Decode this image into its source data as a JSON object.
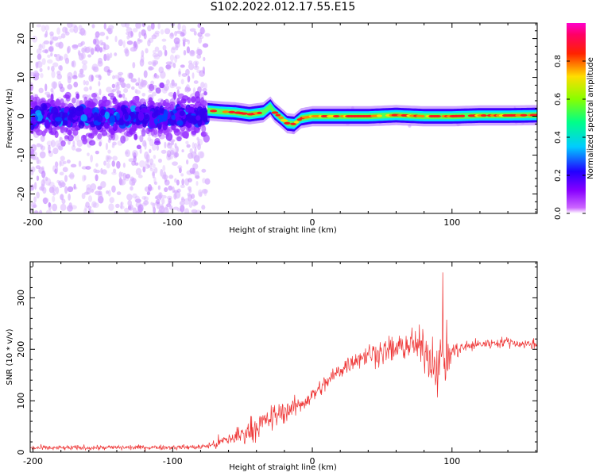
{
  "page": {
    "title": "S102.2022.012.17.55.E15"
  },
  "chart_data": [
    {
      "type": "heatmap",
      "title": "S102.2022.012.17.55.E15",
      "xlabel": "Height of straight line (km)",
      "ylabel": "Frequency (Hz)",
      "xlim": [
        -202,
        161
      ],
      "ylim": [
        -25,
        24
      ],
      "x_ticks": [
        -200,
        -100,
        0,
        100
      ],
      "y_ticks": [
        20,
        10,
        0,
        -10,
        -20
      ],
      "colorbar": {
        "label": "Normalized spectral amplitude",
        "range": [
          0,
          1
        ],
        "ticks": [
          "0.0",
          "0.2",
          "0.4",
          "0.6",
          "0.8"
        ],
        "colormap": [
          "#ff00ff",
          "#8800ff",
          "#0000ff",
          "#00ffff",
          "#00ff00",
          "#ffff00",
          "#ff0000",
          "#ff00aa"
        ]
      },
      "regions": [
        {
          "x_range": [
            -202,
            -75
          ],
          "description_kind": "noise",
          "freq_band": [
            -25,
            24
          ]
        },
        {
          "x_range": [
            -75,
            161
          ],
          "description_kind": "signal line"
        }
      ],
      "ridge": {
        "x": [
          -75,
          -65,
          -55,
          -45,
          -35,
          -30,
          -27,
          -22,
          -18,
          -13,
          -8,
          0,
          10,
          20,
          40,
          60,
          80,
          100,
          120,
          140,
          161
        ],
        "y": [
          1.5,
          1.2,
          1.0,
          0.5,
          1.0,
          2.5,
          1.0,
          -0.5,
          -1.8,
          -2.0,
          -0.5,
          0.0,
          0.0,
          0.0,
          0.0,
          0.3,
          0.0,
          0.0,
          0.2,
          0.2,
          0.3
        ]
      }
    },
    {
      "type": "line",
      "xlabel": "Height of straight line (km)",
      "ylabel": "SNR (10 * v/v)",
      "xlim": [
        -202,
        161
      ],
      "ylim": [
        0,
        370
      ],
      "x_ticks": [
        -200,
        -100,
        0,
        100
      ],
      "y_ticks": [
        0,
        100,
        200,
        300
      ],
      "color": "#ee3333",
      "envelope": {
        "x": [
          -202,
          -80,
          -70,
          -60,
          -50,
          -40,
          -30,
          -20,
          -10,
          0,
          10,
          20,
          30,
          40,
          50,
          60,
          70,
          80,
          85,
          90,
          95,
          100,
          110,
          120,
          130,
          140,
          150,
          161
        ],
        "mean": [
          8,
          10,
          15,
          25,
          35,
          50,
          65,
          80,
          90,
          110,
          135,
          160,
          180,
          190,
          195,
          200,
          210,
          200,
          180,
          170,
          175,
          195,
          205,
          210,
          212,
          215,
          210,
          210
        ],
        "noise": [
          6,
          6,
          12,
          22,
          28,
          30,
          30,
          28,
          25,
          20,
          20,
          22,
          25,
          28,
          30,
          35,
          40,
          45,
          55,
          70,
          80,
          25,
          15,
          12,
          12,
          12,
          12,
          12
        ]
      }
    }
  ]
}
